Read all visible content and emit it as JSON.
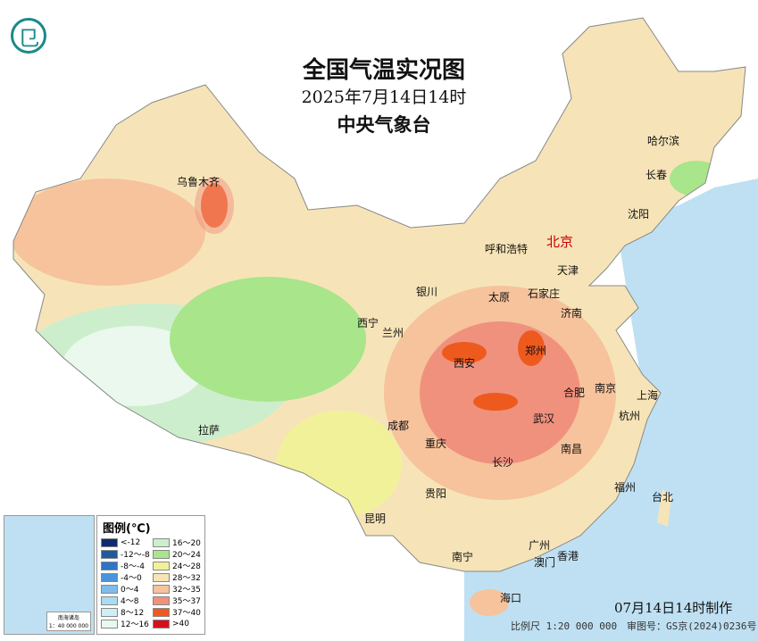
{
  "title": "全国气温实况图",
  "subtitle": "2025年7月14日14时",
  "agency": "中央气象台",
  "legend": {
    "title": "图例(℃)",
    "items": [
      {
        "label": "<-12",
        "color": "#0b2c6e"
      },
      {
        "label": "16～20",
        "color": "#cdeecc"
      },
      {
        "label": "-12～-8",
        "color": "#1f5aa0"
      },
      {
        "label": "20～24",
        "color": "#a9e58a"
      },
      {
        "label": "-8～-4",
        "color": "#2f74c6"
      },
      {
        "label": "24～28",
        "color": "#f1f19a"
      },
      {
        "label": "-4～0",
        "color": "#4a93dc"
      },
      {
        "label": "28～32",
        "color": "#f6e4b8"
      },
      {
        "label": "0～4",
        "color": "#7fbcea"
      },
      {
        "label": "32～35",
        "color": "#f6c39c"
      },
      {
        "label": "4～8",
        "color": "#a9dcee"
      },
      {
        "label": "35～37",
        "color": "#f0917d"
      },
      {
        "label": "8～12",
        "color": "#cdeff7"
      },
      {
        "label": "37～40",
        "color": "#ee5a1e"
      },
      {
        "label": "12～16",
        "color": "#eaf8ee"
      },
      {
        "label": ">40",
        "color": "#d4101a"
      }
    ]
  },
  "cities": [
    {
      "name": "乌鲁木齐"
    },
    {
      "name": "哈尔滨"
    },
    {
      "name": "长春"
    },
    {
      "name": "沈阳"
    },
    {
      "name": "呼和浩特"
    },
    {
      "name": "北京"
    },
    {
      "name": "天津"
    },
    {
      "name": "银川"
    },
    {
      "name": "太原"
    },
    {
      "name": "石家庄"
    },
    {
      "name": "济南"
    },
    {
      "name": "西宁"
    },
    {
      "name": "兰州"
    },
    {
      "name": "郑州"
    },
    {
      "name": "西安"
    },
    {
      "name": "合肥"
    },
    {
      "name": "南京"
    },
    {
      "name": "上海"
    },
    {
      "name": "成都"
    },
    {
      "name": "武汉"
    },
    {
      "name": "杭州"
    },
    {
      "name": "重庆"
    },
    {
      "name": "拉萨"
    },
    {
      "name": "长沙"
    },
    {
      "name": "南昌"
    },
    {
      "name": "福州"
    },
    {
      "name": "台北"
    },
    {
      "name": "贵阳"
    },
    {
      "name": "昆明"
    },
    {
      "name": "南宁"
    },
    {
      "name": "广州"
    },
    {
      "name": "香港"
    },
    {
      "name": "澳门"
    },
    {
      "name": "海口"
    }
  ],
  "inset": {
    "caption_name": "南海诸岛",
    "caption_scale": "1：40 000 000"
  },
  "made_time": "07月14日14时制作",
  "scale": "比例尺 1:20 000 000",
  "map_number": "审图号：GS京(2024)0236号",
  "colors": {
    "ocean": "#bfe0f2",
    "land_outside": "#ffffff",
    "capital": "#cc0000"
  }
}
